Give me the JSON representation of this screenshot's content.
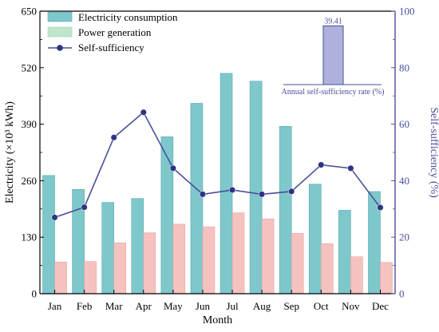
{
  "chart_data": {
    "type": "bar",
    "categories": [
      "Jan",
      "Feb",
      "Mar",
      "Apr",
      "May",
      "Jun",
      "Jul",
      "Aug",
      "Sep",
      "Oct",
      "Nov",
      "Dec"
    ],
    "xlabel": "Month",
    "ylabel": "Electricity (×10³ kWh)",
    "ylim": [
      0,
      650
    ],
    "yticks": [
      0,
      130,
      260,
      390,
      520,
      650
    ],
    "y2label": "Self-sufficiency (%)",
    "y2lim": [
      0,
      100
    ],
    "y2ticks": [
      0,
      20,
      40,
      60,
      80,
      100
    ],
    "grid": false,
    "legend_position": "top-left",
    "series": [
      {
        "name": "Electricity consumption",
        "type": "bar",
        "axis": "left",
        "color": "#7ec8cc",
        "values": [
          272,
          240,
          210,
          219,
          361,
          438,
          507,
          489,
          385,
          252,
          192,
          235
        ]
      },
      {
        "name": "Power generation",
        "type": "bar",
        "axis": "left",
        "color": "#f5c2c0",
        "values": [
          73,
          74,
          117,
          140,
          160,
          154,
          186,
          172,
          139,
          115,
          85,
          72
        ]
      },
      {
        "name": "Self-sufficiency",
        "type": "line",
        "axis": "right",
        "color": "#4a4f9a",
        "values": [
          27.0,
          30.6,
          55.3,
          64.2,
          44.4,
          35.2,
          36.7,
          35.2,
          36.2,
          45.6,
          44.4,
          30.5
        ]
      }
    ],
    "inset": {
      "type": "bar",
      "label": "Annual self-sufficiency rate (%)",
      "value": 39.41,
      "value_label": "39.41",
      "color": "#aeb1de",
      "ylim": [
        0,
        45
      ]
    }
  }
}
